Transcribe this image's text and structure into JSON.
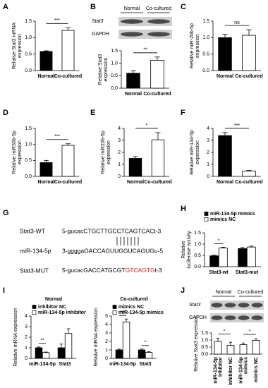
{
  "chart_data": [
    {
      "type": "bar",
      "panel": "A",
      "categories": [
        "Normal",
        "Co-cultured"
      ],
      "values": [
        0.58,
        1.22
      ],
      "errors": [
        0.02,
        0.08
      ],
      "colors": [
        "#000000",
        "#ffffff"
      ],
      "ylabel": [
        "Relative Stat3 mRNA",
        "expression"
      ],
      "ylim": [
        0,
        1.5
      ],
      "yticks": [
        {
          "value": 0,
          "label": "0.0"
        },
        0.5,
        {
          "value": 1,
          "label": "1.0"
        },
        1.5
      ],
      "significance": [
        "***"
      ]
    },
    {
      "type": "bar",
      "panel": "B",
      "blot": {
        "lanes": [
          "Normal",
          "Co-cultured"
        ],
        "bands": [
          "Stat3",
          "GAPDH"
        ]
      },
      "categories": [
        "Normal",
        "Co-cultured"
      ],
      "values": [
        0.6,
        1.12
      ],
      "errors": [
        0.1,
        0.13
      ],
      "colors": [
        "#000000",
        "#ffffff"
      ],
      "ylabel": [
        "Relative Stat3",
        "expression"
      ],
      "ylim": [
        0,
        1.5
      ],
      "yticks": [
        {
          "value": 0,
          "label": "0.0"
        },
        0.5,
        {
          "value": 1,
          "label": "1.0"
        },
        1.5
      ],
      "significance": [
        "**"
      ]
    },
    {
      "type": "bar",
      "panel": "C",
      "categories": [
        "Normal",
        "Co-cultured"
      ],
      "values": [
        1.0,
        1.07
      ],
      "errors": [
        0.1,
        0.17
      ],
      "colors": [
        "#000000",
        "#ffffff"
      ],
      "ylabel": [
        "Relative miR-20b-5p",
        "expression"
      ],
      "ylim": [
        0,
        1.5
      ],
      "yticks": [
        {
          "value": 0,
          "label": "0.0"
        },
        0.5,
        {
          "value": 1,
          "label": "1.0"
        },
        1.5
      ],
      "significance": [
        "ns"
      ]
    },
    {
      "type": "bar",
      "panel": "D",
      "categories": [
        "Normal",
        "Co-cultured"
      ],
      "values": [
        0.43,
        0.97
      ],
      "errors": [
        0.07,
        0.05
      ],
      "colors": [
        "#000000",
        "#ffffff"
      ],
      "ylabel": [
        "Relative miR30b-5p",
        "expression"
      ],
      "ylim": [
        0,
        1.5
      ],
      "yticks": [
        {
          "value": 0,
          "label": "0.0"
        },
        0.5,
        {
          "value": 1,
          "label": "1.0"
        },
        1.5
      ],
      "significance": [
        "***"
      ]
    },
    {
      "type": "bar",
      "panel": "E",
      "categories": [
        "Normal",
        "Co-cultured"
      ],
      "values": [
        1.5,
        3.05
      ],
      "errors": [
        0.15,
        0.6
      ],
      "colors": [
        "#000000",
        "#ffffff"
      ],
      "ylabel": [
        "Relative miR20b-5p",
        "expression"
      ],
      "ylim": [
        0,
        4
      ],
      "yticks": [
        0,
        1,
        2,
        3,
        4
      ],
      "significance": [
        "*"
      ]
    },
    {
      "type": "bar",
      "panel": "F",
      "categories": [
        "Normal",
        "Co-cultured"
      ],
      "values": [
        3.4,
        0.45
      ],
      "errors": [
        0.25,
        0.05
      ],
      "colors": [
        "#000000",
        "#ffffff"
      ],
      "ylabel": [
        "Relative miR-134-5p",
        "expression"
      ],
      "ylim": [
        0,
        4
      ],
      "yticks": [
        0,
        1,
        2,
        3,
        4
      ],
      "significance": [
        "***"
      ]
    },
    {
      "type": "bar",
      "panel": "H",
      "categories": [
        "Stat3-wt",
        "Stat3-mut"
      ],
      "series": [
        {
          "name": "miR-134-5p mimics",
          "color": "#000000",
          "values": [
            0.48,
            0.8
          ],
          "errors": [
            0.03,
            0.05
          ]
        },
        {
          "name": "mimics NC",
          "color": "#ffffff",
          "values": [
            0.83,
            0.87
          ],
          "errors": [
            0.03,
            0.04
          ]
        }
      ],
      "ylabel": [
        "Relative",
        "luciferase activity"
      ],
      "ylim": [
        0,
        1.5
      ],
      "yticks": [
        {
          "value": 0,
          "label": "0.0"
        },
        0.5,
        {
          "value": 1,
          "label": "1.0"
        },
        1.5
      ],
      "significance": [
        "*",
        null
      ]
    },
    {
      "type": "bar",
      "panel": "I",
      "title": "Normal",
      "categories": [
        "miR-134-5p",
        "Stat3"
      ],
      "series": [
        {
          "name": "inhibitor NC",
          "color": "#000000",
          "values": [
            1.0,
            1.0
          ],
          "errors": [
            0.08,
            0.35
          ]
        },
        {
          "name": "miR-134-5p inhibitor",
          "color": "#ffffff",
          "values": [
            0.55,
            2.35
          ],
          "errors": [
            0.05,
            0.45
          ]
        }
      ],
      "ylabel": [
        "Relative mRNA expression"
      ],
      "ylim": [
        0,
        4
      ],
      "yticks": [
        0,
        1,
        2,
        3,
        4
      ],
      "significance": [
        "**",
        null
      ]
    },
    {
      "type": "bar",
      "title": "Co-cultured",
      "categories": [
        "miR-134-5p",
        "Stat3"
      ],
      "series": [
        {
          "name": "mimics NC",
          "color": "#000000",
          "values": [
            1.0,
            1.0
          ],
          "errors": [
            0.1,
            0.1
          ]
        },
        {
          "name": "miR-134-5p mimics",
          "color": "#ffffff",
          "values": [
            4.3,
            0.7
          ],
          "errors": [
            0.35,
            0.1
          ]
        }
      ],
      "ylabel": [
        "Relative mRNA expression"
      ],
      "ylim": [
        0,
        5
      ],
      "yticks": [
        0,
        1,
        2,
        3,
        4,
        5
      ],
      "significance": [
        "***",
        "*"
      ]
    },
    {
      "type": "bar",
      "panel": "J",
      "blot": {
        "lanes": [
          "Normal",
          "Co-cultured"
        ],
        "bands": [
          "Stat3",
          "GAPDH"
        ]
      },
      "categories": [
        [
          "miR-134-5p",
          "inhibitor"
        ],
        [
          "inhibitor NC"
        ],
        [
          "miR-134-5p",
          "mimics"
        ],
        [
          "mimics NC"
        ]
      ],
      "values": [
        0.9,
        0.62,
        0.67,
        0.98
      ],
      "errors": [
        0.22,
        0.22,
        0.12,
        0.12
      ],
      "colors": [
        "#ffffff",
        "#ffffff",
        "#ffffff",
        "#ffffff"
      ],
      "ylabel": [
        "Relative Stat3 expression"
      ],
      "ylim": [
        0,
        1.5
      ],
      "yticks": [
        {
          "value": 0,
          "label": "0.0"
        },
        0.5,
        {
          "value": 1,
          "label": "1.0"
        },
        1.5
      ],
      "significance": [
        "*",
        "*"
      ]
    }
  ],
  "sequence_diagram": {
    "panel": "G",
    "highlight_color": "#e0201b",
    "rows": [
      {
        "label": "Stat3-WT",
        "sequence": [
          "5-gucacCTGCTTGCCTCAGTCACt-3"
        ]
      },
      {
        "label": "miR-134-5p",
        "sequence": [
          "3-ggggaGACCAGUUGGUCAGUGu-5"
        ]
      },
      {
        "label": "Stat3-MUT",
        "sequence": [
          "5-gucacGACCATGCGT",
          "GTCAGTG",
          "t-3"
        ]
      }
    ]
  }
}
